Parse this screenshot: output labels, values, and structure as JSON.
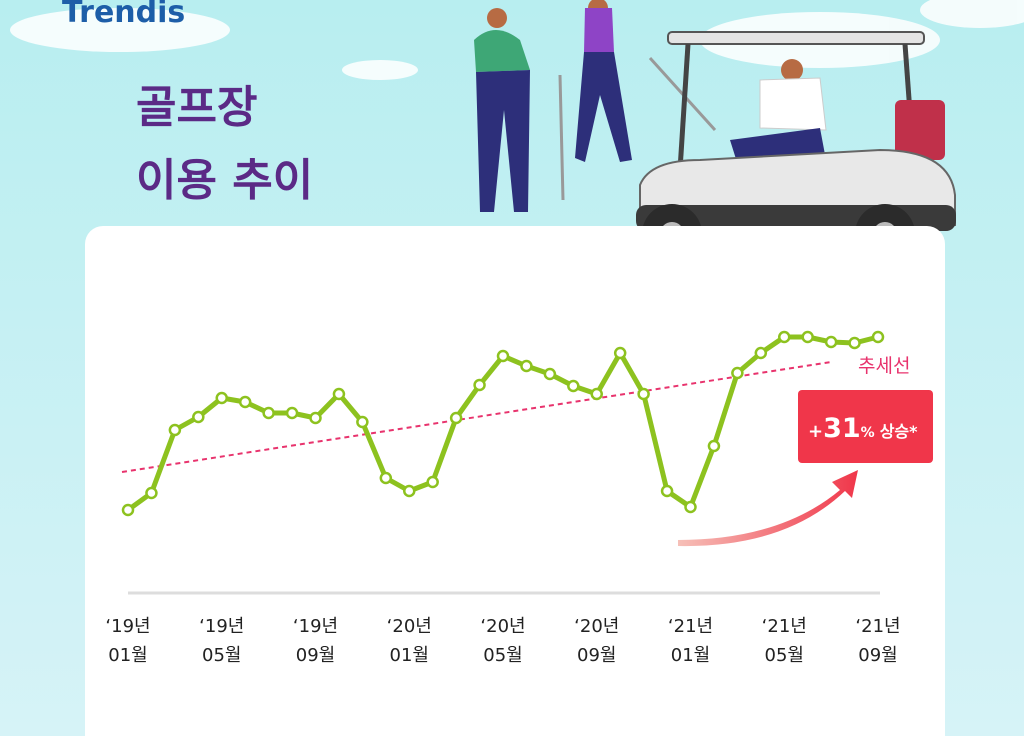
{
  "logo": "Trendis",
  "chart_data": {
    "type": "line",
    "title": [
      "골프장",
      "이용 추이"
    ],
    "categories": [
      "‘19년 01월",
      null,
      null,
      null,
      "‘19년 05월",
      null,
      null,
      null,
      "‘19년 09월",
      null,
      null,
      null,
      "‘20년 01월",
      null,
      null,
      null,
      "‘20년 05월",
      null,
      null,
      null,
      "‘20년 09월",
      null,
      null,
      null,
      "‘21년 01월",
      null,
      null,
      null,
      "‘21년 05월",
      null,
      null,
      null,
      "‘21년 09월"
    ],
    "series": [
      {
        "color": "#8dc21f",
        "values": [
          90,
          107,
          170,
          183,
          202,
          198,
          187,
          187,
          182,
          206,
          178,
          122,
          109,
          118,
          182,
          215,
          244,
          234,
          226,
          214,
          206,
          247,
          206,
          109,
          93,
          154,
          227,
          247,
          263,
          263,
          258,
          257,
          263
        ]
      }
    ],
    "ylim": [
      0,
      300
    ],
    "trend": {
      "label": "추세선",
      "color": "#e8336d",
      "values": [
        128,
        238
      ]
    },
    "annotation": {
      "prefix": "+",
      "value": 31,
      "unit": "%",
      "text": "상승*",
      "color": "#f0364a"
    }
  }
}
